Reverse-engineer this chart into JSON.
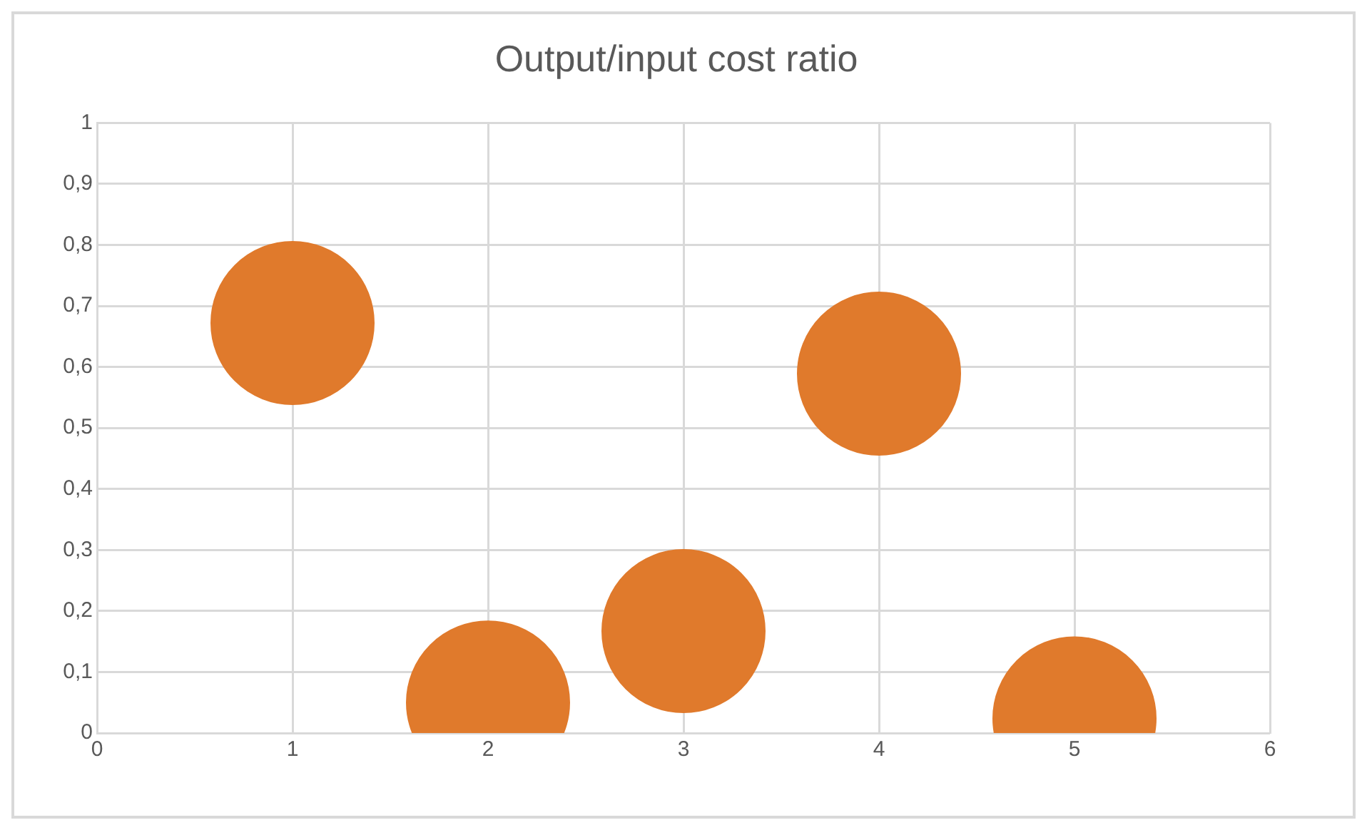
{
  "chart_data": {
    "type": "bubble",
    "title": "Output/input cost ratio",
    "x": [
      1,
      2,
      3,
      4,
      5
    ],
    "series": [
      {
        "color": "#e07a2c",
        "values": [
          0.672,
          0.05,
          0.167,
          0.589,
          0.024
        ],
        "sizes": [
          1,
          1,
          1,
          1,
          1
        ]
      }
    ],
    "xlim": [
      0,
      6
    ],
    "xticks": [
      0,
      1,
      2,
      3,
      4,
      5,
      6
    ],
    "ylim": [
      0,
      1
    ],
    "yticks": [
      0,
      {
        "value": 0.1,
        "label": "0,1"
      },
      {
        "value": 0.2,
        "label": "0,2"
      },
      {
        "value": 0.3,
        "label": "0,3"
      },
      {
        "value": 0.4,
        "label": "0,4"
      },
      {
        "value": 0.5,
        "label": "0,5"
      },
      {
        "value": 0.6,
        "label": "0,6"
      },
      {
        "value": 0.7,
        "label": "0,7"
      },
      {
        "value": 0.8,
        "label": "0,8"
      },
      {
        "value": 0.9,
        "label": "0,9"
      },
      1
    ],
    "grid": true,
    "legend": false
  }
}
